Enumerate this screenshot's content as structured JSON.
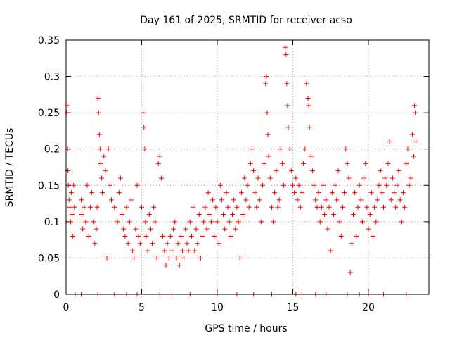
{
  "chart_data": {
    "type": "scatter",
    "title": "Day 161 of 2025, SRMTID for receiver acso",
    "xlabel": "GPS time / hours",
    "ylabel": "SRMTID / TECUs",
    "xlim": [
      0,
      24
    ],
    "ylim": [
      0,
      0.35
    ],
    "xticks": [
      0,
      5,
      10,
      15,
      20
    ],
    "xtick_labels": [
      "0",
      "5",
      "10",
      "15",
      "20"
    ],
    "yticks": [
      0,
      0.05,
      0.1,
      0.15,
      0.2,
      0.25,
      0.3,
      0.35
    ],
    "ytick_labels": [
      "0",
      "0.05",
      "0.1",
      "0.15",
      "0.2",
      "0.25",
      "0.3",
      "0.35"
    ],
    "grid": true,
    "marker": "+",
    "color": "#ff0000",
    "series": [
      {
        "name": "SRMTID",
        "points": [
          [
            0.05,
            0.25
          ],
          [
            0.08,
            0.26
          ],
          [
            0.1,
            0.2
          ],
          [
            0.12,
            0.17
          ],
          [
            0.15,
            0.15
          ],
          [
            0.2,
            0.13
          ],
          [
            0.25,
            0.12
          ],
          [
            0.3,
            0.1
          ],
          [
            0.35,
            0.14
          ],
          [
            0.4,
            0.11
          ],
          [
            0.45,
            0.08
          ],
          [
            0.5,
            0.15
          ],
          [
            0.55,
            0.12
          ],
          [
            1.0,
            0.13
          ],
          [
            1.05,
            0.11
          ],
          [
            1.1,
            0.09
          ],
          [
            1.2,
            0.12
          ],
          [
            1.3,
            0.1
          ],
          [
            1.4,
            0.15
          ],
          [
            1.5,
            0.08
          ],
          [
            1.6,
            0.12
          ],
          [
            1.7,
            0.14
          ],
          [
            1.8,
            0.1
          ],
          [
            1.9,
            0.07
          ],
          [
            2.0,
            0.09
          ],
          [
            2.05,
            0.12
          ],
          [
            2.1,
            0.27
          ],
          [
            2.15,
            0.25
          ],
          [
            2.2,
            0.22
          ],
          [
            2.25,
            0.2
          ],
          [
            2.3,
            0.18
          ],
          [
            2.35,
            0.16
          ],
          [
            2.4,
            0.14
          ],
          [
            2.5,
            0.19
          ],
          [
            2.6,
            0.17
          ],
          [
            2.7,
            0.05
          ],
          [
            2.8,
            0.2
          ],
          [
            2.9,
            0.15
          ],
          [
            3.0,
            0.13
          ],
          [
            3.2,
            0.12
          ],
          [
            3.4,
            0.1
          ],
          [
            3.5,
            0.14
          ],
          [
            3.6,
            0.16
          ],
          [
            3.7,
            0.11
          ],
          [
            3.8,
            0.09
          ],
          [
            3.9,
            0.08
          ],
          [
            4.0,
            0.12
          ],
          [
            4.1,
            0.07
          ],
          [
            4.2,
            0.1
          ],
          [
            4.3,
            0.13
          ],
          [
            4.4,
            0.06
          ],
          [
            4.5,
            0.05
          ],
          [
            4.6,
            0.09
          ],
          [
            4.7,
            0.15
          ],
          [
            4.8,
            0.08
          ],
          [
            4.9,
            0.07
          ],
          [
            5.0,
            0.12
          ],
          [
            5.1,
            0.25
          ],
          [
            5.15,
            0.23
          ],
          [
            5.2,
            0.2
          ],
          [
            5.25,
            0.1
          ],
          [
            5.3,
            0.08
          ],
          [
            5.4,
            0.06
          ],
          [
            5.5,
            0.11
          ],
          [
            5.6,
            0.09
          ],
          [
            5.7,
            0.07
          ],
          [
            5.8,
            0.12
          ],
          [
            5.9,
            0.1
          ],
          [
            6.0,
            0.05
          ],
          [
            6.1,
            0.18
          ],
          [
            6.2,
            0.19
          ],
          [
            6.3,
            0.16
          ],
          [
            6.4,
            0.08
          ],
          [
            6.5,
            0.06
          ],
          [
            6.6,
            0.04
          ],
          [
            6.7,
            0.07
          ],
          [
            6.8,
            0.05
          ],
          [
            6.9,
            0.08
          ],
          [
            7.0,
            0.06
          ],
          [
            7.1,
            0.09
          ],
          [
            7.2,
            0.1
          ],
          [
            7.3,
            0.05
          ],
          [
            7.4,
            0.07
          ],
          [
            7.5,
            0.04
          ],
          [
            7.6,
            0.08
          ],
          [
            7.7,
            0.06
          ],
          [
            7.8,
            0.05
          ],
          [
            7.9,
            0.09
          ],
          [
            8.0,
            0.07
          ],
          [
            8.1,
            0.06
          ],
          [
            8.2,
            0.1
          ],
          [
            8.3,
            0.08
          ],
          [
            8.4,
            0.12
          ],
          [
            8.5,
            0.06
          ],
          [
            8.6,
            0.09
          ],
          [
            8.7,
            0.07
          ],
          [
            8.8,
            0.11
          ],
          [
            8.9,
            0.05
          ],
          [
            9.0,
            0.08
          ],
          [
            9.1,
            0.1
          ],
          [
            9.2,
            0.12
          ],
          [
            9.3,
            0.09
          ],
          [
            9.4,
            0.14
          ],
          [
            9.5,
            0.11
          ],
          [
            9.6,
            0.1
          ],
          [
            9.7,
            0.13
          ],
          [
            9.8,
            0.08
          ],
          [
            9.9,
            0.12
          ],
          [
            10.0,
            0.1
          ],
          [
            10.1,
            0.07
          ],
          [
            10.2,
            0.15
          ],
          [
            10.3,
            0.13
          ],
          [
            10.4,
            0.11
          ],
          [
            10.5,
            0.09
          ],
          [
            10.6,
            0.14
          ],
          [
            10.7,
            0.12
          ],
          [
            10.8,
            0.1
          ],
          [
            10.9,
            0.08
          ],
          [
            11.0,
            0.11
          ],
          [
            11.1,
            0.13
          ],
          [
            11.2,
            0.09
          ],
          [
            11.3,
            0.12
          ],
          [
            11.4,
            0.1
          ],
          [
            11.5,
            0.05
          ],
          [
            11.6,
            0.14
          ],
          [
            11.7,
            0.11
          ],
          [
            11.8,
            0.16
          ],
          [
            11.9,
            0.13
          ],
          [
            12.0,
            0.15
          ],
          [
            12.1,
            0.12
          ],
          [
            12.2,
            0.18
          ],
          [
            12.3,
            0.2
          ],
          [
            12.4,
            0.17
          ],
          [
            12.5,
            0.14
          ],
          [
            12.6,
            0.12
          ],
          [
            12.7,
            0.16
          ],
          [
            12.8,
            0.13
          ],
          [
            12.9,
            0.1
          ],
          [
            13.0,
            0.15
          ],
          [
            13.1,
            0.18
          ],
          [
            13.2,
            0.29
          ],
          [
            13.25,
            0.3
          ],
          [
            13.3,
            0.25
          ],
          [
            13.35,
            0.22
          ],
          [
            13.4,
            0.19
          ],
          [
            13.5,
            0.16
          ],
          [
            13.6,
            0.12
          ],
          [
            13.7,
            0.1
          ],
          [
            13.8,
            0.14
          ],
          [
            13.9,
            0.17
          ],
          [
            14.0,
            0.12
          ],
          [
            14.1,
            0.13
          ],
          [
            14.2,
            0.2
          ],
          [
            14.3,
            0.18
          ],
          [
            14.4,
            0.15
          ],
          [
            14.5,
            0.34
          ],
          [
            14.55,
            0.33
          ],
          [
            14.6,
            0.29
          ],
          [
            14.65,
            0.26
          ],
          [
            14.7,
            0.23
          ],
          [
            14.8,
            0.2
          ],
          [
            14.9,
            0.17
          ],
          [
            15.0,
            0.15
          ],
          [
            15.1,
            0.14
          ],
          [
            15.2,
            0.16
          ],
          [
            15.3,
            0.13
          ],
          [
            15.4,
            0.15
          ],
          [
            15.5,
            0.12
          ],
          [
            15.6,
            0.14
          ],
          [
            15.7,
            0.18
          ],
          [
            15.8,
            0.2
          ],
          [
            15.9,
            0.29
          ],
          [
            16.0,
            0.27
          ],
          [
            16.05,
            0.26
          ],
          [
            16.1,
            0.23
          ],
          [
            16.2,
            0.19
          ],
          [
            16.3,
            0.17
          ],
          [
            16.4,
            0.15
          ],
          [
            16.5,
            0.13
          ],
          [
            16.6,
            0.12
          ],
          [
            16.7,
            0.14
          ],
          [
            16.8,
            0.1
          ],
          [
            16.9,
            0.12
          ],
          [
            17.0,
            0.15
          ],
          [
            17.1,
            0.11
          ],
          [
            17.2,
            0.13
          ],
          [
            17.3,
            0.09
          ],
          [
            17.4,
            0.12
          ],
          [
            17.5,
            0.06
          ],
          [
            17.6,
            0.14
          ],
          [
            17.7,
            0.11
          ],
          [
            17.8,
            0.15
          ],
          [
            17.9,
            0.13
          ],
          [
            18.0,
            0.17
          ],
          [
            18.1,
            0.1
          ],
          [
            18.2,
            0.08
          ],
          [
            18.3,
            0.12
          ],
          [
            18.4,
            0.14
          ],
          [
            18.5,
            0.2
          ],
          [
            18.6,
            0.18
          ],
          [
            18.7,
            0.16
          ],
          [
            18.8,
            0.03
          ],
          [
            18.9,
            0.07
          ],
          [
            19.0,
            0.11
          ],
          [
            19.1,
            0.14
          ],
          [
            19.2,
            0.08
          ],
          [
            19.3,
            0.12
          ],
          [
            19.4,
            0.15
          ],
          [
            19.5,
            0.13
          ],
          [
            19.6,
            0.1
          ],
          [
            19.7,
            0.16
          ],
          [
            19.8,
            0.18
          ],
          [
            19.9,
            0.12
          ],
          [
            20.0,
            0.09
          ],
          [
            20.1,
            0.11
          ],
          [
            20.2,
            0.14
          ],
          [
            20.3,
            0.08
          ],
          [
            20.4,
            0.12
          ],
          [
            20.5,
            0.1
          ],
          [
            20.6,
            0.13
          ],
          [
            20.7,
            0.15
          ],
          [
            20.8,
            0.17
          ],
          [
            20.9,
            0.14
          ],
          [
            21.0,
            0.12
          ],
          [
            21.1,
            0.16
          ],
          [
            21.2,
            0.15
          ],
          [
            21.3,
            0.18
          ],
          [
            21.4,
            0.21
          ],
          [
            21.5,
            0.13
          ],
          [
            21.6,
            0.16
          ],
          [
            21.7,
            0.14
          ],
          [
            21.8,
            0.12
          ],
          [
            21.9,
            0.15
          ],
          [
            22.0,
            0.17
          ],
          [
            22.1,
            0.13
          ],
          [
            22.2,
            0.1
          ],
          [
            22.3,
            0.14
          ],
          [
            22.4,
            0.12
          ],
          [
            22.5,
            0.18
          ],
          [
            22.6,
            0.2
          ],
          [
            22.7,
            0.15
          ],
          [
            22.8,
            0.16
          ],
          [
            22.9,
            0.22
          ],
          [
            23.0,
            0.19
          ],
          [
            23.05,
            0.26
          ],
          [
            23.1,
            0.25
          ],
          [
            23.15,
            0.21
          ],
          [
            0.6,
            0.0
          ],
          [
            1.0,
            0.0
          ],
          [
            2.1,
            0.0
          ],
          [
            3.2,
            0.0
          ],
          [
            4.0,
            0.0
          ],
          [
            4.7,
            0.0
          ],
          [
            6.2,
            0.0
          ],
          [
            7.0,
            0.0
          ],
          [
            8.2,
            0.0
          ],
          [
            10.0,
            0.0
          ],
          [
            11.3,
            0.0
          ],
          [
            12.4,
            0.0
          ],
          [
            13.6,
            0.0
          ],
          [
            15.2,
            0.0
          ],
          [
            15.6,
            0.0
          ],
          [
            16.5,
            0.0
          ],
          [
            17.2,
            0.0
          ],
          [
            18.6,
            0.0
          ],
          [
            19.4,
            0.0
          ],
          [
            20.0,
            0.0
          ],
          [
            21.0,
            0.0
          ],
          [
            22.5,
            0.0
          ]
        ]
      }
    ]
  }
}
